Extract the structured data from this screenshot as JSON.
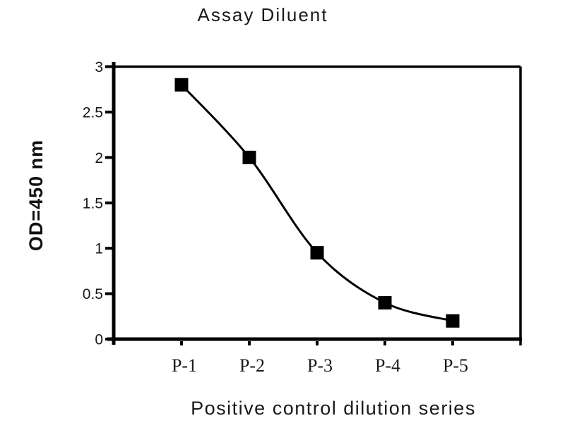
{
  "page": {
    "background_color": "#ffffff"
  },
  "chart_data": {
    "type": "line",
    "title": "Assay Diluent",
    "xlabel": "Positive control dilution series",
    "ylabel": "OD=450 nm",
    "categories": [
      "P-1",
      "P-2",
      "P-3",
      "P-4",
      "P-5"
    ],
    "x": [
      1,
      2,
      3,
      4,
      5
    ],
    "series": [
      {
        "name": "Positive control",
        "values": [
          2.8,
          2.0,
          0.95,
          0.4,
          0.2
        ]
      }
    ],
    "xlim": [
      0,
      6
    ],
    "ylim": [
      0,
      3
    ],
    "yticks": [
      0,
      0.5,
      1,
      1.5,
      2,
      2.5,
      3
    ],
    "ytick_labels": [
      "0",
      "0.5",
      "1",
      "1.5",
      "2",
      "2.5",
      "3"
    ],
    "grid": false,
    "legend": "none",
    "smooth_line": true,
    "marker": "filled-square",
    "colors": {
      "line": "#000000",
      "marker": "#000000",
      "axis": "#000000",
      "text": "#1a1a1a"
    }
  }
}
